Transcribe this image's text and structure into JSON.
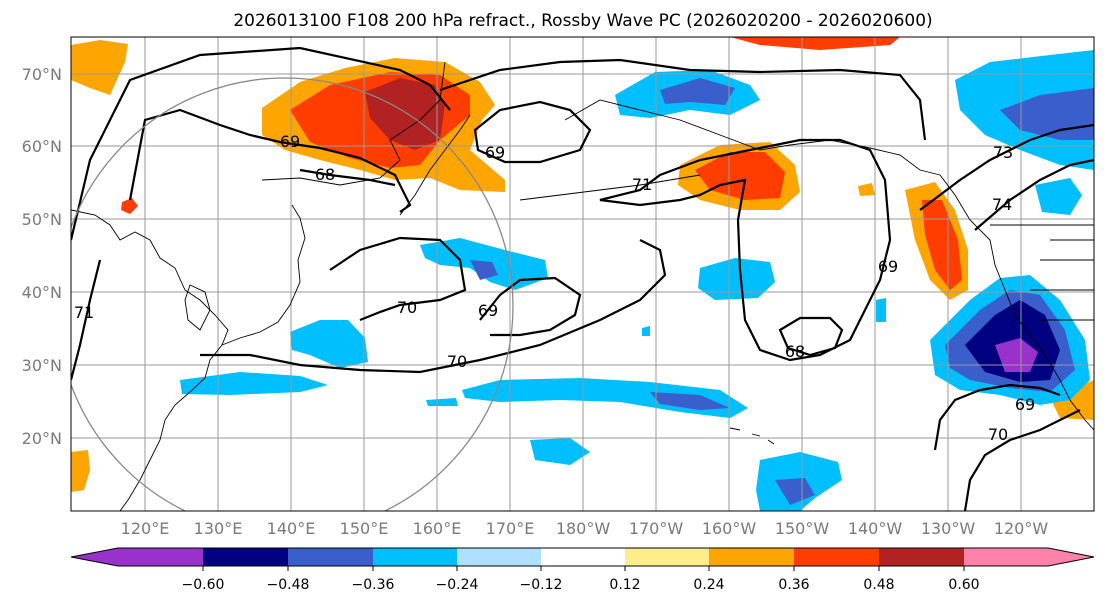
{
  "title": "2026013100 F108 200 hPa refract., Rossby Wave PC (2026020200 - 2026020600)",
  "colors": {
    "ruby": "#b22222",
    "redorange": "#ff3d00",
    "orange": "#ffa500",
    "yellow": "#ffec8b",
    "lightblue": "#b0e0ff",
    "skyblue": "#00bfff",
    "royal": "#3a5fcd",
    "navy": "#000080",
    "purple": "#9932cc",
    "pink": "#ff82ab"
  },
  "map": {
    "lat_labels": [
      "70°N",
      "60°N",
      "50°N",
      "40°N",
      "30°N",
      "20°N"
    ],
    "lon_labels": [
      "120°E",
      "130°E",
      "140°E",
      "150°E",
      "160°E",
      "170°E",
      "180°W",
      "170°W",
      "160°W",
      "150°W",
      "140°W",
      "130°W",
      "120°W"
    ],
    "contour_labels": [
      "69",
      "68",
      "69",
      "71",
      "70",
      "69",
      "70",
      "71",
      "69",
      "68",
      "73",
      "74",
      "69",
      "70"
    ]
  },
  "colorbar": {
    "tick_labels": [
      "−0.60",
      "−0.48",
      "−0.36",
      "−0.24",
      "−0.12",
      "0.12",
      "0.24",
      "0.36",
      "0.48",
      "0.60"
    ]
  }
}
